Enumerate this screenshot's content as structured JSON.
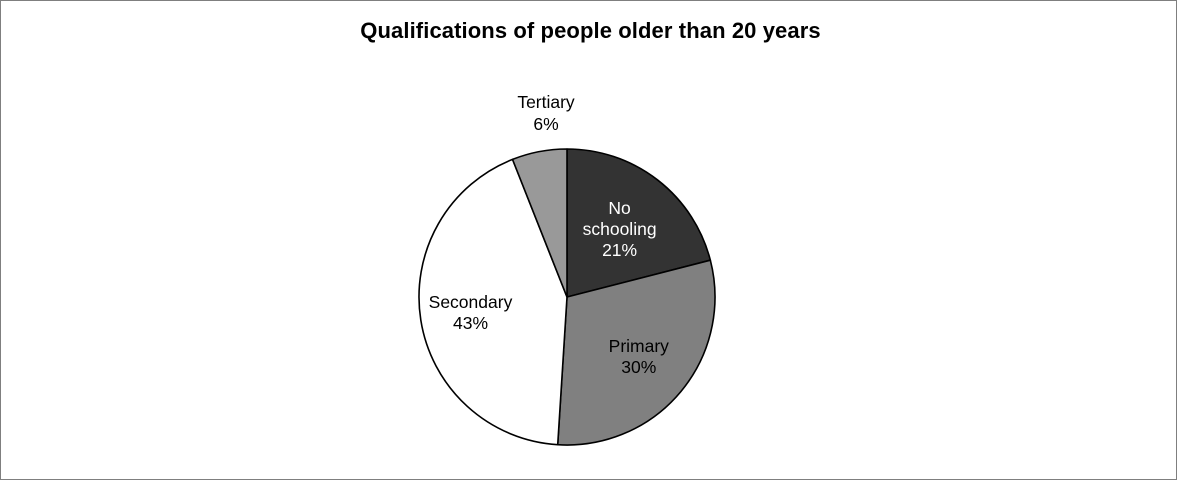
{
  "chart_data": {
    "type": "pie",
    "title": "Qualifications of people older than 20 years",
    "slices": [
      {
        "label_lines": [
          "No",
          "schooling"
        ],
        "value": 21,
        "value_label": "21%",
        "color": "#333333"
      },
      {
        "label_lines": [
          "Primary"
        ],
        "value": 30,
        "value_label": "30%",
        "color": "#808080"
      },
      {
        "label_lines": [
          "Secondary"
        ],
        "value": 43,
        "value_label": "43%",
        "color": "#ffffff"
      },
      {
        "label_lines": [
          "Tertiary"
        ],
        "value": 6,
        "value_label": "6%",
        "color": "#999999"
      }
    ],
    "start_angle_deg": 0,
    "direction": "clockwise",
    "outline_color": "#000000"
  }
}
